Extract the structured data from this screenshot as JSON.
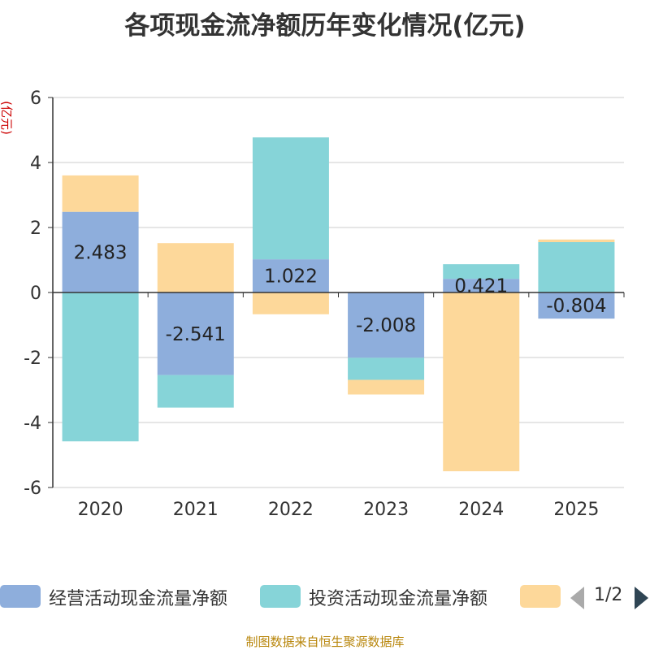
{
  "title": "各项现金流净额历年变化情况(亿元)",
  "footer": "制图数据来自恒生聚源数据库",
  "legend": {
    "items": [
      {
        "label": "经营活动现金流量净额",
        "color": "#8eaedc"
      },
      {
        "label": "投资活动现金流量净额",
        "color": "#86d4d8"
      },
      {
        "label": "",
        "color": "#fdd89a"
      }
    ],
    "page": "1/2"
  },
  "chart_data": {
    "type": "bar",
    "stacked": true,
    "title": "各项现金流净额历年变化情况(亿元)",
    "ylabel": "(亿元)",
    "ylim": [
      -6,
      6
    ],
    "yticks": [
      6,
      4,
      2,
      0,
      -2,
      -4,
      -6
    ],
    "categories": [
      "2020",
      "2021",
      "2022",
      "2023",
      "2024",
      "2025"
    ],
    "series": [
      {
        "name": "经营活动现金流量净额",
        "color": "#8eaedc",
        "values": [
          2.483,
          -2.541,
          1.022,
          -2.008,
          0.421,
          -0.804
        ],
        "show_labels": true
      },
      {
        "name": "投资活动现金流量净额",
        "color": "#86d4d8",
        "values": [
          -4.58,
          -1.0,
          3.75,
          -0.68,
          0.45,
          1.55
        ]
      },
      {
        "name": "",
        "color": "#fdd89a",
        "values": [
          1.12,
          1.52,
          -0.67,
          -0.45,
          -5.5,
          0.08
        ]
      }
    ],
    "data_labels": [
      "2.483",
      "-2.541",
      "1.022",
      "-2.008",
      "0.421",
      "-0.804"
    ]
  }
}
